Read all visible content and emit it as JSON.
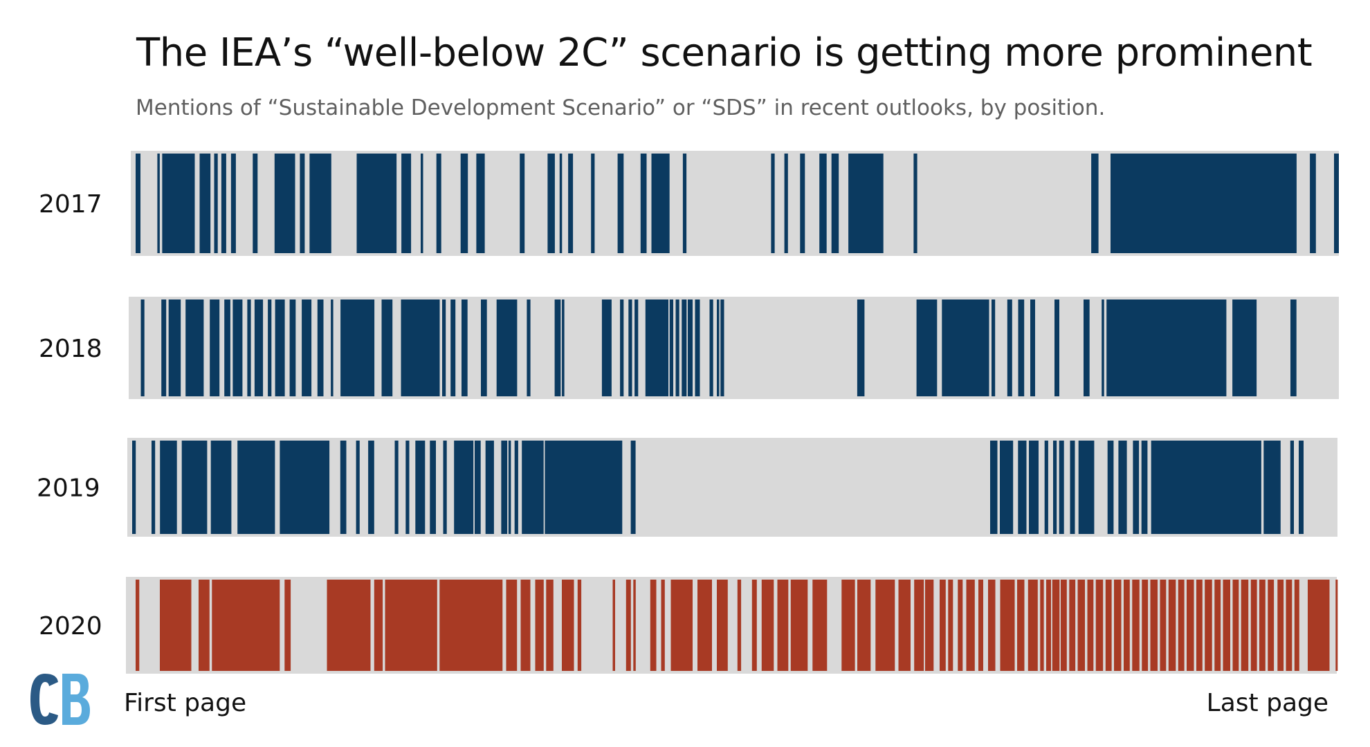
{
  "title": "The IEA’s “well-below 2C” scenario is getting more prominent",
  "subtitle": "Mentions of “Sustainable Development Scenario” or “SDS” in recent outlooks, by position.",
  "logo_text": "CB",
  "colors": {
    "background_bar": "#d9d9d9",
    "blue": "#0b3a60",
    "red": "#a83a24",
    "logo_dark": "#2b5a85",
    "logo_light": "#5aabdc"
  },
  "chart_data": {
    "type": "barcode",
    "x_unit": "relative position in report (0 = first page, 100 = last page)",
    "xlim": [
      0,
      100
    ],
    "x_start_label": "First page",
    "x_end_label": "Last page",
    "series": [
      {
        "name": "2017",
        "color": "blue",
        "segments": [
          [
            0.4,
            0.8
          ],
          [
            2.2,
            2.4
          ],
          [
            2.6,
            5.3
          ],
          [
            5.7,
            6.6
          ],
          [
            6.9,
            7.2
          ],
          [
            7.5,
            7.9
          ],
          [
            8.3,
            8.7
          ],
          [
            10.1,
            10.5
          ],
          [
            11.9,
            13.6
          ],
          [
            14.0,
            14.4
          ],
          [
            14.8,
            16.6
          ],
          [
            18.7,
            22.0
          ],
          [
            22.4,
            23.2
          ],
          [
            24.0,
            24.2
          ],
          [
            25.3,
            25.7
          ],
          [
            27.3,
            27.9
          ],
          [
            28.6,
            29.3
          ],
          [
            32.2,
            32.6
          ],
          [
            34.5,
            35.1
          ],
          [
            35.5,
            35.7
          ],
          [
            36.2,
            36.6
          ],
          [
            38.1,
            38.4
          ],
          [
            40.3,
            40.8
          ],
          [
            42.2,
            42.7
          ],
          [
            43.1,
            44.6
          ],
          [
            45.7,
            46.0
          ],
          [
            53.0,
            53.3
          ],
          [
            54.1,
            54.4
          ],
          [
            55.4,
            55.8
          ],
          [
            57.0,
            57.6
          ],
          [
            58.0,
            58.6
          ],
          [
            59.4,
            62.3
          ],
          [
            64.8,
            65.1
          ],
          [
            79.5,
            80.1
          ],
          [
            81.1,
            96.5
          ],
          [
            97.6,
            98.1
          ],
          [
            99.6,
            100.0
          ]
        ]
      },
      {
        "name": "2018",
        "color": "blue",
        "segments": [
          [
            1.0,
            1.3
          ],
          [
            2.7,
            3.1
          ],
          [
            3.3,
            4.3
          ],
          [
            4.7,
            6.2
          ],
          [
            6.7,
            7.5
          ],
          [
            7.9,
            8.4
          ],
          [
            8.6,
            9.4
          ],
          [
            9.8,
            10.1
          ],
          [
            10.4,
            11.1
          ],
          [
            11.5,
            11.8
          ],
          [
            12.1,
            12.9
          ],
          [
            13.3,
            13.8
          ],
          [
            14.3,
            15.1
          ],
          [
            15.6,
            16.1
          ],
          [
            16.7,
            16.9
          ],
          [
            17.5,
            20.3
          ],
          [
            20.9,
            21.8
          ],
          [
            22.5,
            25.7
          ],
          [
            25.9,
            26.2
          ],
          [
            26.6,
            27.0
          ],
          [
            27.5,
            28.0
          ],
          [
            29.1,
            29.6
          ],
          [
            30.4,
            32.1
          ],
          [
            32.9,
            33.2
          ],
          [
            35.2,
            35.7
          ],
          [
            35.8,
            36.0
          ],
          [
            39.1,
            39.9
          ],
          [
            40.6,
            40.9
          ],
          [
            41.3,
            41.6
          ],
          [
            41.8,
            42.1
          ],
          [
            42.7,
            44.6
          ],
          [
            44.7,
            45.0
          ],
          [
            45.2,
            45.5
          ],
          [
            45.7,
            46.1
          ],
          [
            46.2,
            46.6
          ],
          [
            46.8,
            47.2
          ],
          [
            48.0,
            48.3
          ],
          [
            48.6,
            48.8
          ],
          [
            48.9,
            49.2
          ],
          [
            60.2,
            60.8
          ],
          [
            65.1,
            66.8
          ],
          [
            67.2,
            71.1
          ],
          [
            71.3,
            71.6
          ],
          [
            72.6,
            73.0
          ],
          [
            73.5,
            74.0
          ],
          [
            74.5,
            74.9
          ],
          [
            76.5,
            76.9
          ],
          [
            78.9,
            79.4
          ],
          [
            80.4,
            80.6
          ],
          [
            80.8,
            90.7
          ],
          [
            91.2,
            93.2
          ],
          [
            96.0,
            96.5
          ]
        ]
      },
      {
        "name": "2019",
        "color": "blue",
        "segments": [
          [
            0.4,
            0.7
          ],
          [
            2.0,
            2.3
          ],
          [
            2.7,
            4.1
          ],
          [
            4.5,
            6.6
          ],
          [
            6.9,
            8.6
          ],
          [
            9.1,
            12.2
          ],
          [
            12.6,
            16.7
          ],
          [
            17.6,
            18.1
          ],
          [
            18.9,
            19.2
          ],
          [
            19.9,
            20.4
          ],
          [
            22.1,
            22.4
          ],
          [
            23.0,
            23.3
          ],
          [
            23.8,
            24.6
          ],
          [
            25.0,
            25.5
          ],
          [
            26.1,
            26.4
          ],
          [
            27.0,
            28.6
          ],
          [
            28.7,
            29.2
          ],
          [
            29.6,
            30.3
          ],
          [
            30.9,
            31.4
          ],
          [
            31.5,
            31.7
          ],
          [
            32.0,
            32.3
          ],
          [
            32.6,
            34.4
          ],
          [
            34.5,
            40.9
          ],
          [
            41.6,
            42.0
          ],
          [
            71.3,
            71.9
          ],
          [
            72.1,
            73.2
          ],
          [
            73.6,
            74.3
          ],
          [
            74.5,
            75.3
          ],
          [
            75.8,
            76.1
          ],
          [
            76.5,
            76.8
          ],
          [
            77.0,
            77.4
          ],
          [
            77.9,
            78.3
          ],
          [
            78.6,
            79.9
          ],
          [
            81.0,
            81.5
          ],
          [
            81.9,
            82.6
          ],
          [
            83.1,
            83.6
          ],
          [
            83.8,
            84.3
          ],
          [
            84.6,
            93.7
          ],
          [
            93.9,
            95.3
          ],
          [
            96.1,
            96.4
          ],
          [
            96.8,
            97.2
          ]
        ]
      },
      {
        "name": "2020",
        "color": "red",
        "segments": [
          [
            0.8,
            1.1
          ],
          [
            2.8,
            5.4
          ],
          [
            6.0,
            6.9
          ],
          [
            7.1,
            12.7
          ],
          [
            13.1,
            13.6
          ],
          [
            16.6,
            20.2
          ],
          [
            20.5,
            21.2
          ],
          [
            21.4,
            25.7
          ],
          [
            25.9,
            31.1
          ],
          [
            31.4,
            32.3
          ],
          [
            32.6,
            33.4
          ],
          [
            33.8,
            34.5
          ],
          [
            34.7,
            35.3
          ],
          [
            36.0,
            37.0
          ],
          [
            37.3,
            37.6
          ],
          [
            40.2,
            40.4
          ],
          [
            41.3,
            41.7
          ],
          [
            41.9,
            42.1
          ],
          [
            43.3,
            43.8
          ],
          [
            44.2,
            44.5
          ],
          [
            45.0,
            46.8
          ],
          [
            47.2,
            48.4
          ],
          [
            48.8,
            49.7
          ],
          [
            50.5,
            50.8
          ],
          [
            51.7,
            52.1
          ],
          [
            52.5,
            53.5
          ],
          [
            53.8,
            54.7
          ],
          [
            54.9,
            56.3
          ],
          [
            56.7,
            57.9
          ],
          [
            59.1,
            60.2
          ],
          [
            60.4,
            61.5
          ],
          [
            61.9,
            63.5
          ],
          [
            63.8,
            64.8
          ],
          [
            65.1,
            65.9
          ],
          [
            66.0,
            66.7
          ],
          [
            67.2,
            67.7
          ],
          [
            67.9,
            68.3
          ],
          [
            68.7,
            69.1
          ],
          [
            69.4,
            70.1
          ],
          [
            70.4,
            70.8
          ],
          [
            71.2,
            71.8
          ],
          [
            72.2,
            73.4
          ],
          [
            73.6,
            74.2
          ],
          [
            74.5,
            75.3
          ],
          [
            75.5,
            75.8
          ],
          [
            76.0,
            76.4
          ],
          [
            76.5,
            77.1
          ],
          [
            77.2,
            77.7
          ],
          [
            77.9,
            78.4
          ],
          [
            78.6,
            79.2
          ],
          [
            79.4,
            79.9
          ],
          [
            80.1,
            80.7
          ],
          [
            80.9,
            81.4
          ],
          [
            81.6,
            82.2
          ],
          [
            82.4,
            82.9
          ],
          [
            83.1,
            83.7
          ],
          [
            83.9,
            84.4
          ],
          [
            84.6,
            85.2
          ],
          [
            85.4,
            85.9
          ],
          [
            86.1,
            86.7
          ],
          [
            86.9,
            87.4
          ],
          [
            87.6,
            88.2
          ],
          [
            88.4,
            88.9
          ],
          [
            89.1,
            89.7
          ],
          [
            89.9,
            90.4
          ],
          [
            90.6,
            91.2
          ],
          [
            91.4,
            91.9
          ],
          [
            92.1,
            92.7
          ],
          [
            92.9,
            93.4
          ],
          [
            93.6,
            94.1
          ],
          [
            94.3,
            94.8
          ],
          [
            95.1,
            95.6
          ],
          [
            95.8,
            96.3
          ],
          [
            96.5,
            96.9
          ],
          [
            97.6,
            99.4
          ],
          [
            99.9,
            100.0
          ]
        ]
      }
    ],
    "extra_segments_note": ""
  }
}
